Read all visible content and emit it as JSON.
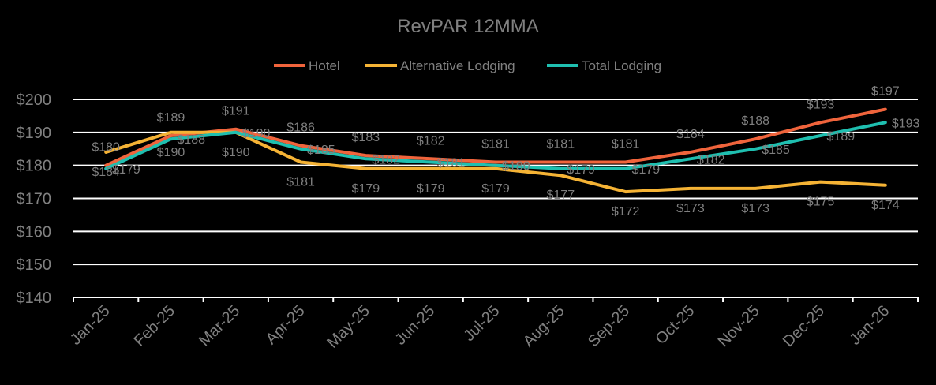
{
  "chart_data": {
    "type": "line",
    "title": "RevPAR 12MMA",
    "xlabel": "",
    "ylabel": "",
    "ylim": [
      140,
      200
    ],
    "yticks": [
      140,
      150,
      160,
      170,
      180,
      190,
      200
    ],
    "ytick_labels": [
      "$140",
      "$150",
      "$160",
      "$170",
      "$180",
      "$190",
      "$200"
    ],
    "grid": true,
    "legend_position": "top-center",
    "categories": [
      "Jan-25",
      "Feb-25",
      "Mar-25",
      "Apr-25",
      "May-25",
      "Jun-25",
      "Jul-25",
      "Aug-25",
      "Sep-25",
      "Oct-25",
      "Nov-25",
      "Dec-25",
      "Jan-26"
    ],
    "series": [
      {
        "name": "Hotel",
        "color": "#f0643c",
        "values": [
          180,
          189,
          191,
          186,
          183,
          182,
          181,
          181,
          181,
          184,
          188,
          193,
          197
        ],
        "labels": [
          "$180",
          "$189",
          "$191",
          "$186",
          "$183",
          "$182",
          "$181",
          "$181",
          "$181",
          "$184",
          "$188",
          "$193",
          "$197"
        ]
      },
      {
        "name": "Alternative Lodging",
        "color": "#f5b335",
        "values": [
          184,
          190,
          190,
          181,
          179,
          179,
          179,
          177,
          172,
          173,
          173,
          175,
          174
        ],
        "labels": [
          "$184",
          "$190",
          "$190",
          "$181",
          "$179",
          "$179",
          "$179",
          "$177",
          "$172",
          "$173",
          "$173",
          "$175",
          "$174"
        ]
      },
      {
        "name": "Total Lodging",
        "color": "#1fbfb0",
        "values": [
          179,
          188,
          190,
          185,
          182,
          181,
          180,
          179,
          179,
          182,
          185,
          189,
          193
        ],
        "labels": [
          "$179",
          "$188",
          "$190",
          "$185",
          "$182",
          "$181",
          "$180",
          "$179",
          "$179",
          "$182",
          "$185",
          "$189",
          "$193"
        ]
      }
    ]
  }
}
